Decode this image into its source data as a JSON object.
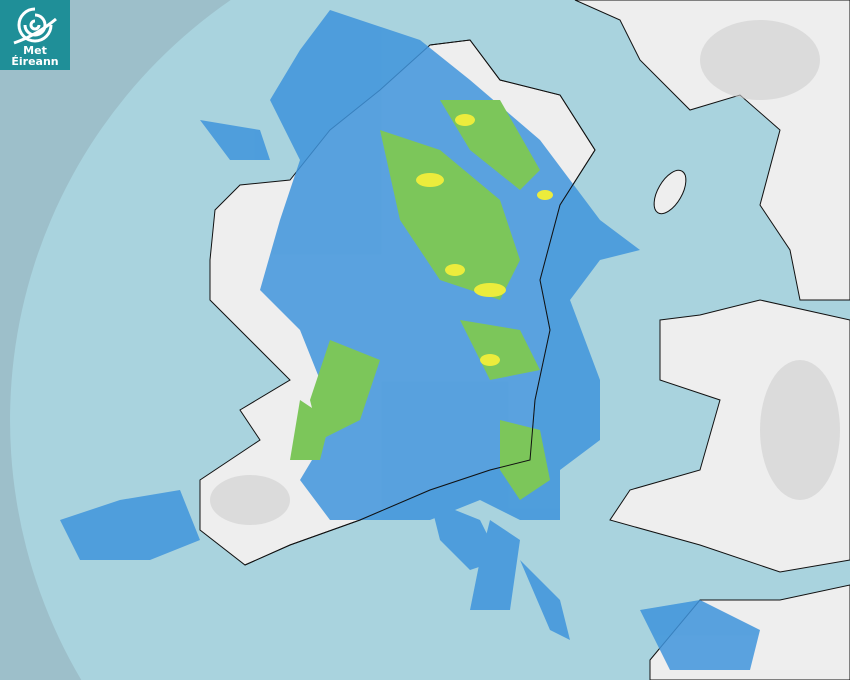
{
  "logo": {
    "line1": "Met",
    "line2": "Éireann",
    "color": "#1f8f98"
  },
  "map": {
    "type": "weather radar composite",
    "colors": {
      "outside_coverage": "#9dbfca",
      "sea": "#a9d3de",
      "land": "#efefef",
      "rain_light": "#3f94dc",
      "rain_moderate": "#7cc65a",
      "rain_heavy": "#ecec3c"
    }
  }
}
